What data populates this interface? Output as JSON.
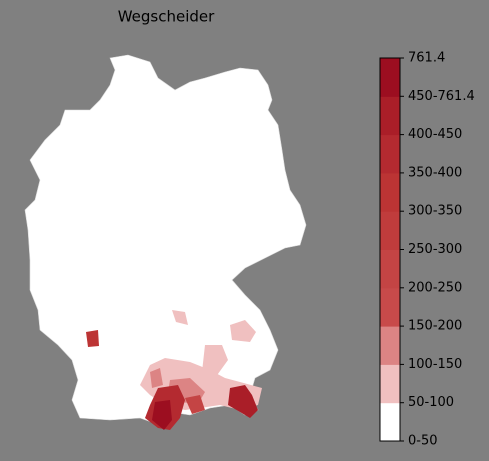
{
  "title": "Wegscheider",
  "colorbar": {
    "ticks": [
      "0-50",
      "50-100",
      "100-150",
      "150-200",
      "200-250",
      "250-300",
      "300-350",
      "350-400",
      "400-450",
      "450-761.4",
      "761.4"
    ],
    "colors": [
      "#ffffff",
      "#f0c0c0",
      "#dc8484",
      "#c84a4a",
      "#c44444",
      "#c03c3c",
      "#bc3434",
      "#b42a30",
      "#aa1e28",
      "#9c0e20"
    ]
  }
}
